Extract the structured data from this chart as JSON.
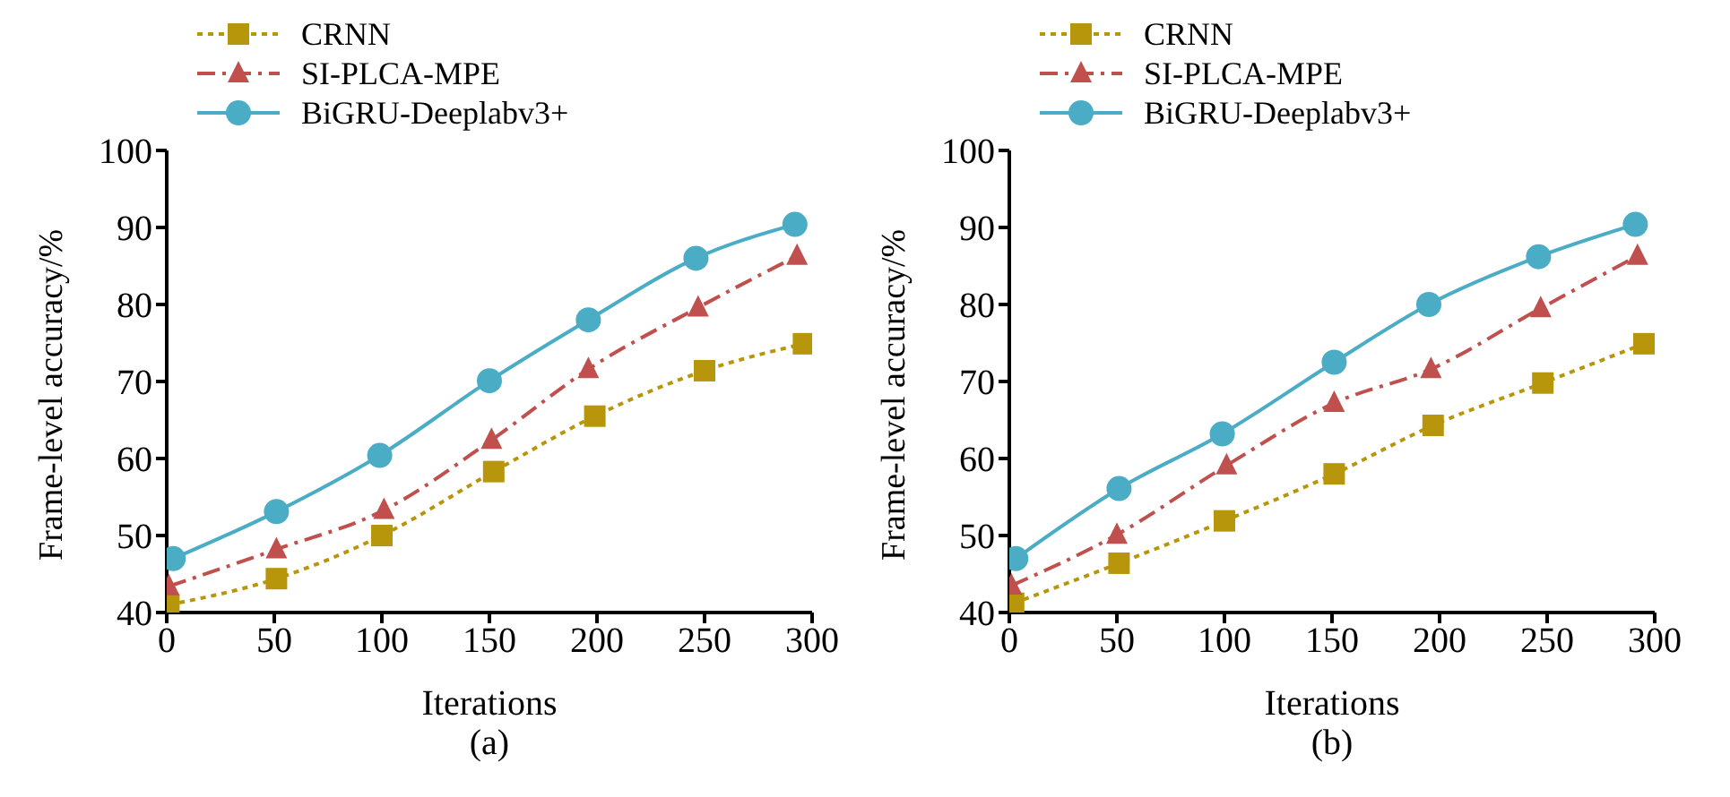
{
  "chart_data": [
    {
      "type": "line",
      "xlabel": "Iterations",
      "ylabel": "Frame-level accuracy/%",
      "annotations": [
        "(a)"
      ],
      "xlim": [
        0,
        300
      ],
      "xticks": [
        0,
        50,
        100,
        150,
        200,
        250,
        300
      ],
      "ylim": [
        40,
        100
      ],
      "yticks": [
        40,
        50,
        60,
        70,
        80,
        90,
        100
      ],
      "grid": false,
      "legend": "top left",
      "series": [
        {
          "name": "CRNN",
          "color": "#b8960c",
          "line_style": "dotted",
          "marker": "square",
          "x": [
            1,
            51,
            100,
            152,
            199,
            250,
            296
          ],
          "values": [
            41,
            44.4,
            50,
            58.3,
            65.5,
            71.4,
            74.9
          ]
        },
        {
          "name": "SI-PLCA-MPE",
          "color": "#c0504d",
          "line_style": "dashed",
          "marker": "triangle",
          "x": [
            1,
            51,
            101,
            151,
            196,
            247,
            293
          ],
          "values": [
            43.4,
            48.2,
            53.3,
            62.4,
            71.6,
            79.6,
            86.3
          ]
        },
        {
          "name": "BiGRU-Deeplabv3+",
          "color": "#4bacc6",
          "line_style": "solid",
          "marker": "circle",
          "x": [
            3,
            51,
            99,
            150,
            196,
            246,
            292
          ],
          "values": [
            47,
            53.1,
            60.4,
            70.1,
            78,
            86,
            90.4
          ]
        }
      ]
    },
    {
      "type": "line",
      "xlabel": "Iterations",
      "ylabel": "Frame-level accuracy/%",
      "annotations": [
        "(b)"
      ],
      "xlim": [
        0,
        300
      ],
      "xticks": [
        0,
        50,
        100,
        150,
        200,
        250,
        300
      ],
      "ylim": [
        40,
        100
      ],
      "yticks": [
        40,
        50,
        60,
        70,
        80,
        90,
        100
      ],
      "grid": false,
      "legend": "top left",
      "series": [
        {
          "name": "CRNN",
          "color": "#b8960c",
          "line_style": "dotted",
          "marker": "square",
          "x": [
            2,
            51,
            100,
            151,
            197,
            248,
            295
          ],
          "values": [
            41.2,
            46.4,
            51.9,
            58,
            64.3,
            69.8,
            74.9
          ]
        },
        {
          "name": "SI-PLCA-MPE",
          "color": "#c0504d",
          "line_style": "dashed",
          "marker": "triangle",
          "x": [
            1,
            50,
            101,
            151,
            196,
            247,
            292
          ],
          "values": [
            43.5,
            50.1,
            59.1,
            67.2,
            71.6,
            79.5,
            86.3
          ]
        },
        {
          "name": "BiGRU-Deeplabv3+",
          "color": "#4bacc6",
          "line_style": "solid",
          "marker": "circle",
          "x": [
            3,
            51,
            99,
            151,
            195,
            246,
            291
          ],
          "values": [
            47,
            56.1,
            63.2,
            72.5,
            80,
            86.2,
            90.4
          ]
        }
      ]
    }
  ]
}
